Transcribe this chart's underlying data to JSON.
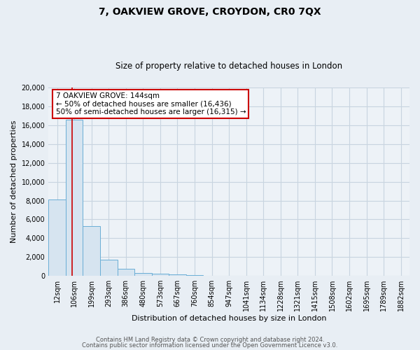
{
  "title": "7, OAKVIEW GROVE, CROYDON, CR0 7QX",
  "subtitle": "Size of property relative to detached houses in London",
  "xlabel": "Distribution of detached houses by size in London",
  "ylabel": "Number of detached properties",
  "bar_values": [
    8100,
    16600,
    5300,
    1750,
    750,
    300,
    200,
    150,
    100,
    0,
    0,
    0,
    0,
    0,
    0,
    0,
    0,
    0,
    0,
    0,
    0
  ],
  "x_tick_labels": [
    "12sqm",
    "106sqm",
    "199sqm",
    "293sqm",
    "386sqm",
    "480sqm",
    "573sqm",
    "667sqm",
    "760sqm",
    "854sqm",
    "947sqm",
    "1041sqm",
    "1134sqm",
    "1228sqm",
    "1321sqm",
    "1415sqm",
    "1508sqm",
    "1602sqm",
    "1695sqm",
    "1789sqm",
    "1882sqm"
  ],
  "bar_color": "#d6e4f0",
  "bar_edge_color": "#6aaed6",
  "red_line_x": 1.38,
  "annotation_title": "7 OAKVIEW GROVE: 144sqm",
  "annotation_line1": "← 50% of detached houses are smaller (16,436)",
  "annotation_line2": "50% of semi-detached houses are larger (16,315) →",
  "annotation_box_facecolor": "#ffffff",
  "annotation_box_edgecolor": "#cc0000",
  "ylim": [
    0,
    20000
  ],
  "yticks": [
    0,
    2000,
    4000,
    6000,
    8000,
    10000,
    12000,
    14000,
    16000,
    18000,
    20000
  ],
  "footer1": "Contains HM Land Registry data © Crown copyright and database right 2024.",
  "footer2": "Contains public sector information licensed under the Open Government Licence v3.0.",
  "bg_color": "#e8eef4",
  "plot_bg_color": "#edf2f7",
  "grid_color": "#c8d4e0",
  "n_total_bars": 21
}
